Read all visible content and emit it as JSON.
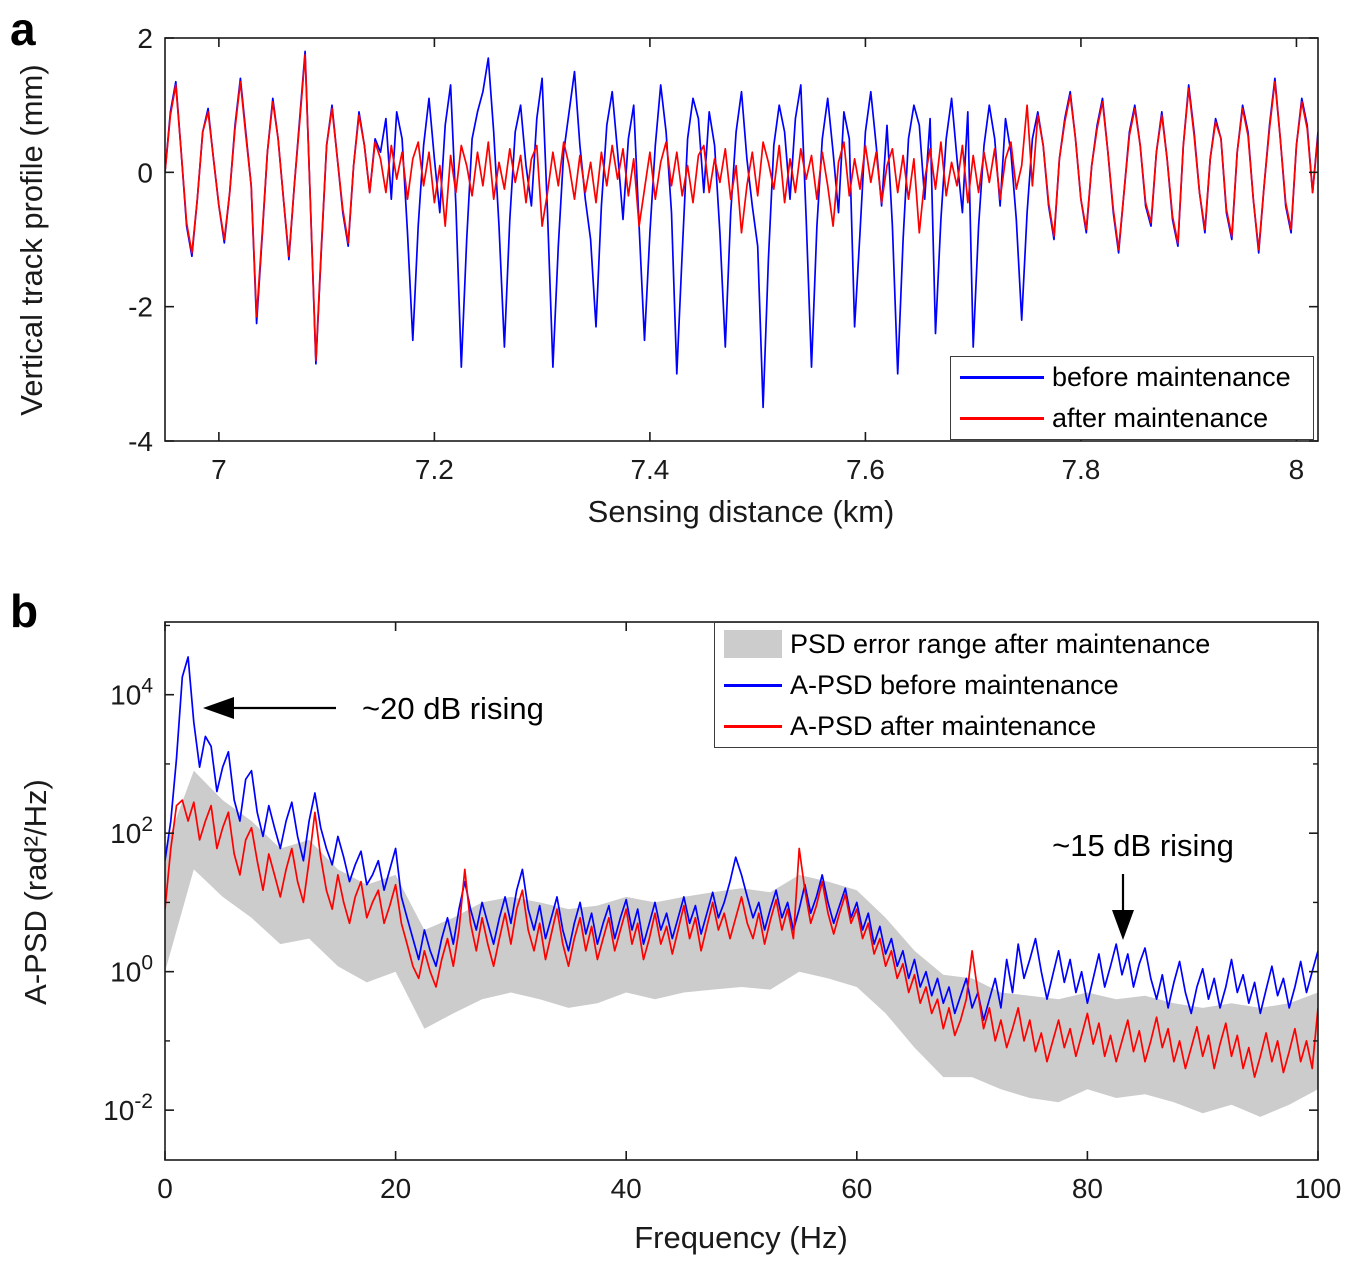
{
  "figure": {
    "background": "#ffffff"
  },
  "panel_a": {
    "label": "a"
  },
  "panel_b": {
    "label": "b"
  },
  "colors": {
    "before": "#0000ff",
    "after": "#ff0000",
    "band": "#cccccc",
    "axis": "#1a1a1a"
  },
  "chart_data": [
    {
      "type": "line",
      "panel": "a",
      "xlabel": "Sensing distance (km)",
      "ylabel": "Vertical track profile (mm)",
      "xlim": [
        6.95,
        8.02
      ],
      "ylim": [
        -4,
        2
      ],
      "grid": false,
      "x_ticks": {
        "values": [
          7,
          7.2,
          7.4,
          7.6,
          7.8,
          8
        ],
        "labels": [
          "7",
          "7.2",
          "7.4",
          "7.6",
          "7.8",
          "8"
        ]
      },
      "y_ticks": {
        "values": [
          2,
          0,
          -2,
          -4
        ],
        "labels": [
          "2",
          "0",
          "-2",
          "-4"
        ]
      },
      "legend_position": "bottom-right",
      "legend": [
        {
          "label": "before maintenance",
          "color": "#0000ff"
        },
        {
          "label": "after maintenance",
          "color": "#ff0000"
        }
      ],
      "series": [
        {
          "name": "before maintenance",
          "color": "#0000ff",
          "x_start": 6.95,
          "x_step": 0.005,
          "values": [
            0.0,
            0.9,
            1.35,
            0.3,
            -0.8,
            -1.25,
            -0.4,
            0.6,
            0.95,
            0.2,
            -0.5,
            -1.05,
            -0.3,
            0.7,
            1.4,
            0.6,
            -0.2,
            -2.25,
            -1.0,
            0.3,
            1.1,
            0.5,
            -0.4,
            -1.3,
            -0.2,
            0.8,
            1.8,
            -0.5,
            -2.85,
            -1.2,
            0.4,
            1.0,
            0.2,
            -0.6,
            -1.1,
            0.1,
            0.9,
            0.4,
            -0.3,
            0.5,
            0.3,
            0.8,
            -0.4,
            0.9,
            0.5,
            -0.9,
            -2.5,
            -0.8,
            0.4,
            1.1,
            0.2,
            -0.6,
            0.7,
            1.3,
            -0.5,
            -2.9,
            -1.0,
            0.5,
            0.9,
            1.2,
            1.7,
            0.6,
            -0.8,
            -2.6,
            -0.7,
            0.6,
            1.0,
            0.1,
            -0.5,
            0.8,
            1.4,
            -0.6,
            -2.9,
            -1.1,
            0.3,
            0.9,
            1.5,
            0.4,
            -0.4,
            -1.0,
            -2.3,
            -0.5,
            0.7,
            1.2,
            0.3,
            -0.7,
            0.5,
            1.0,
            -0.8,
            -2.5,
            -0.9,
            0.4,
            1.3,
            0.6,
            -0.6,
            -3.0,
            -1.2,
            0.5,
            1.1,
            0.8,
            -0.3,
            0.9,
            0.4,
            -0.9,
            -2.6,
            -0.6,
            0.6,
            1.2,
            0.2,
            -0.5,
            -1.1,
            -3.5,
            -1.3,
            0.4,
            1.0,
            0.6,
            -0.4,
            0.8,
            1.3,
            -0.7,
            -2.9,
            -0.8,
            0.5,
            1.1,
            0.3,
            -0.6,
            0.9,
            0.5,
            -2.3,
            -0.9,
            0.6,
            1.2,
            0.4,
            -0.5,
            0.7,
            -0.8,
            -3.0,
            -1.0,
            0.5,
            1.0,
            0.7,
            -0.4,
            0.8,
            -2.4,
            -0.7,
            0.5,
            1.1,
            0.2,
            -0.6,
            0.9,
            -2.6,
            -0.8,
            0.4,
            1.0,
            0.5,
            -0.5,
            0.8,
            0.3,
            -0.7,
            -2.2,
            -0.6,
            0.5,
            0.9,
            0.4,
            -0.5,
            -1.0,
            0.2,
            0.8,
            1.2,
            0.5,
            -0.4,
            -0.9,
            0.1,
            0.7,
            1.1,
            0.3,
            -0.6,
            -1.2,
            -0.3,
            0.6,
            1.0,
            0.4,
            -0.5,
            -0.8,
            0.3,
            0.9,
            0.2,
            -0.7,
            -1.1,
            0.4,
            1.3,
            0.6,
            -0.3,
            -0.9,
            0.2,
            0.8,
            0.5,
            -0.6,
            -1.0,
            0.3,
            1.0,
            0.6,
            -0.4,
            -1.2,
            -0.2,
            0.7,
            1.4,
            0.5,
            -0.5,
            -0.9,
            0.4,
            1.1,
            0.7,
            -0.3,
            0.6
          ]
        },
        {
          "name": "after maintenance",
          "color": "#ff0000",
          "x_start": 6.95,
          "x_step": 0.005,
          "values": [
            0.0,
            0.85,
            1.3,
            0.3,
            -0.75,
            -1.2,
            -0.4,
            0.6,
            0.9,
            0.2,
            -0.5,
            -1.0,
            -0.3,
            0.65,
            1.35,
            0.55,
            -0.2,
            -2.15,
            -0.95,
            0.3,
            1.05,
            0.5,
            -0.4,
            -1.25,
            -0.2,
            0.75,
            1.75,
            -0.5,
            -2.8,
            -1.15,
            0.4,
            0.95,
            0.2,
            -0.55,
            -1.05,
            0.1,
            0.85,
            0.4,
            -0.3,
            0.45,
            0.2,
            -0.3,
            0.4,
            -0.1,
            0.3,
            -0.4,
            0.2,
            0.45,
            -0.2,
            0.3,
            -0.45,
            0.1,
            -0.8,
            0.25,
            -0.3,
            0.4,
            0.1,
            -0.35,
            0.3,
            -0.2,
            0.45,
            -0.4,
            0.15,
            -0.25,
            0.35,
            -0.15,
            0.25,
            -0.45,
            0.2,
            0.4,
            -0.8,
            -0.3,
            0.3,
            -0.2,
            0.45,
            0.1,
            -0.4,
            0.25,
            -0.3,
            0.15,
            -0.45,
            0.3,
            -0.2,
            0.4,
            -0.1,
            0.35,
            -0.35,
            0.2,
            -0.8,
            -0.25,
            0.3,
            -0.4,
            0.15,
            0.45,
            -0.2,
            0.3,
            -0.35,
            0.1,
            -0.45,
            0.25,
            0.4,
            -0.3,
            0.2,
            -0.15,
            0.35,
            -0.4,
            0.1,
            -0.9,
            -0.2,
            0.3,
            -0.35,
            0.45,
            0.15,
            -0.25,
            0.4,
            -0.45,
            0.2,
            -0.3,
            0.35,
            -0.1,
            0.25,
            -0.4,
            0.3,
            -0.2,
            -0.8,
            0.15,
            0.45,
            -0.35,
            0.2,
            -0.25,
            0.4,
            -0.15,
            0.3,
            -0.45,
            0.1,
            0.35,
            -0.3,
            0.25,
            -0.4,
            0.2,
            -0.9,
            -0.1,
            0.35,
            -0.25,
            0.45,
            -0.35,
            0.15,
            -0.2,
            0.4,
            -0.45,
            0.25,
            -0.3,
            0.3,
            -0.15,
            0.35,
            -0.4,
            0.2,
            0.45,
            -0.25,
            0.1,
            1.0,
            -0.2,
            0.85,
            0.4,
            -0.45,
            -0.95,
            0.2,
            0.75,
            1.15,
            0.5,
            -0.4,
            -0.85,
            0.1,
            0.65,
            1.05,
            0.3,
            -0.55,
            -1.15,
            -0.3,
            0.55,
            0.95,
            0.4,
            -0.45,
            -0.75,
            0.3,
            0.85,
            0.2,
            -0.65,
            -1.05,
            0.4,
            1.25,
            0.55,
            -0.3,
            -0.85,
            0.2,
            0.75,
            0.5,
            -0.55,
            -0.95,
            0.3,
            0.95,
            0.55,
            -0.4,
            -1.15,
            -0.2,
            0.65,
            1.35,
            0.5,
            -0.45,
            -0.85,
            0.4,
            1.05,
            0.65,
            -0.3,
            0.55
          ]
        }
      ]
    },
    {
      "type": "line",
      "panel": "b",
      "xlabel": "Frequency (Hz)",
      "ylabel": "A-PSD (rad²/Hz)",
      "xlim": [
        0,
        100
      ],
      "yscale": "log",
      "ylim_log10": [
        -2.72,
        5.05
      ],
      "grid": false,
      "x_ticks": {
        "values": [
          0,
          20,
          40,
          60,
          80,
          100
        ],
        "labels": [
          "0",
          "20",
          "40",
          "60",
          "80",
          "100"
        ]
      },
      "y_ticks": {
        "values": [
          0.01,
          1,
          100,
          10000
        ],
        "labels": [
          "10^-2",
          "10^0",
          "10^2",
          "10^4"
        ]
      },
      "y_minor_ticks": [
        0.1,
        10,
        1000,
        100000
      ],
      "legend_position": "top-right",
      "legend": [
        {
          "label": "PSD error range after maintenance",
          "color": "#cccccc",
          "type": "patch"
        },
        {
          "label": "A-PSD before maintenance",
          "color": "#0000ff",
          "type": "line"
        },
        {
          "label": "A-PSD after maintenance",
          "color": "#ff0000",
          "type": "line"
        }
      ],
      "annotations": [
        {
          "text": "~20 dB rising",
          "arrow": "left",
          "points_to": {
            "x_hz": 2.5,
            "y": 10000
          }
        },
        {
          "text": "~15 dB rising",
          "arrow": "down",
          "points_to": {
            "x_hz": 83,
            "y": 3
          }
        }
      ],
      "band": {
        "name": "PSD error range after maintenance",
        "color": "#cccccc",
        "x": [
          0,
          2.5,
          5,
          7.5,
          10,
          12.5,
          15,
          17.5,
          20,
          22.5,
          25,
          27.5,
          30,
          32.5,
          35,
          37.5,
          40,
          42.5,
          45,
          47.5,
          50,
          52.5,
          55,
          57.5,
          60,
          62.5,
          65,
          67.5,
          70,
          72.5,
          75,
          77.5,
          80,
          82.5,
          85,
          87.5,
          90,
          92.5,
          95,
          97.5,
          100
        ],
        "upper": [
          60,
          800,
          300,
          150,
          60,
          80,
          30,
          18,
          25,
          4,
          6,
          10,
          12,
          10,
          8,
          9,
          12,
          10,
          12,
          14,
          16,
          14,
          25,
          20,
          15,
          6,
          2,
          0.9,
          0.8,
          0.5,
          0.45,
          0.4,
          0.5,
          0.4,
          0.45,
          0.35,
          0.3,
          0.35,
          0.3,
          0.35,
          0.5
        ],
        "lower": [
          1,
          30,
          12,
          6,
          2.5,
          3,
          1.2,
          0.7,
          1,
          0.15,
          0.25,
          0.4,
          0.5,
          0.4,
          0.3,
          0.35,
          0.5,
          0.4,
          0.5,
          0.55,
          0.6,
          0.55,
          1,
          0.8,
          0.6,
          0.25,
          0.08,
          0.03,
          0.03,
          0.02,
          0.015,
          0.013,
          0.02,
          0.015,
          0.017,
          0.013,
          0.009,
          0.012,
          0.008,
          0.012,
          0.02
        ]
      },
      "series": [
        {
          "name": "A-PSD before maintenance",
          "color": "#0000ff",
          "x_start": 0,
          "x_step": 0.5,
          "values": [
            40,
            150,
            1200,
            18000,
            35000,
            4000,
            900,
            2500,
            1800,
            400,
            900,
            1500,
            300,
            150,
            600,
            800,
            200,
            90,
            250,
            120,
            60,
            150,
            280,
            90,
            40,
            150,
            380,
            120,
            60,
            35,
            90,
            45,
            20,
            35,
            55,
            18,
            25,
            40,
            15,
            30,
            60,
            12,
            6,
            3,
            1.5,
            4,
            2,
            1.2,
            3,
            6,
            2.5,
            8,
            20,
            8,
            4,
            10,
            5,
            2.5,
            6,
            12,
            5,
            15,
            30,
            8,
            4,
            9,
            3,
            6,
            12,
            4,
            2,
            5,
            10,
            3.5,
            7,
            2.5,
            5,
            9,
            3,
            6,
            11,
            4,
            8,
            2.5,
            5,
            10,
            4,
            7,
            3,
            6,
            12,
            5,
            9,
            3.5,
            7,
            14,
            6,
            10,
            20,
            45,
            25,
            12,
            6,
            10,
            4,
            8,
            15,
            6,
            10,
            4,
            8,
            18,
            7,
            12,
            25,
            10,
            5,
            9,
            16,
            6,
            10,
            4,
            7,
            2.5,
            4.5,
            1.8,
            3,
            1.2,
            2,
            0.8,
            1.5,
            0.6,
            1,
            0.45,
            0.8,
            0.35,
            0.6,
            0.25,
            0.45,
            0.8,
            0.3,
            0.5,
            0.2,
            0.4,
            0.8,
            0.3,
            1.5,
            0.5,
            2.5,
            0.8,
            1.5,
            3,
            1,
            0.4,
            0.9,
            2,
            0.7,
            1.5,
            0.5,
            1,
            0.35,
            0.8,
            1.8,
            0.6,
            1.2,
            2.5,
            0.9,
            1.8,
            0.6,
            1.3,
            2.2,
            0.8,
            0.4,
            0.9,
            0.3,
            0.7,
            1.4,
            0.5,
            0.25,
            0.6,
            1.1,
            0.4,
            0.8,
            0.3,
            0.6,
            1.5,
            0.5,
            0.9,
            0.35,
            0.7,
            0.25,
            0.55,
            1.2,
            0.45,
            0.8,
            0.3,
            0.6,
            1.4,
            0.5,
            1,
            2
          ]
        },
        {
          "name": "A-PSD after maintenance",
          "color": "#ff0000",
          "x_start": 0,
          "x_step": 0.5,
          "values": [
            8,
            60,
            250,
            300,
            150,
            280,
            80,
            150,
            250,
            60,
            120,
            200,
            50,
            25,
            80,
            120,
            40,
            15,
            50,
            25,
            12,
            30,
            60,
            20,
            10,
            40,
            200,
            45,
            15,
            8,
            25,
            10,
            5,
            12,
            20,
            6,
            10,
            15,
            5,
            9,
            18,
            5,
            2.5,
            1.2,
            0.8,
            2,
            1,
            0.6,
            1.5,
            3,
            1.2,
            4,
            30,
            5,
            2,
            6,
            2.5,
            1.2,
            3,
            7,
            2.5,
            8,
            15,
            4,
            2,
            5,
            1.5,
            3.5,
            8,
            2.5,
            1.2,
            3,
            6,
            2,
            4.5,
            1.5,
            3,
            6,
            2,
            4,
            8,
            2.5,
            5,
            1.5,
            3,
            7,
            2.5,
            4.5,
            1.8,
            4,
            9,
            3,
            6,
            2,
            4.5,
            10,
            4,
            7,
            3,
            6,
            12,
            5,
            3,
            7,
            2.5,
            5.5,
            11,
            4,
            8,
            3,
            60,
            15,
            5,
            9,
            20,
            7,
            3.5,
            7,
            13,
            5,
            8,
            3,
            5,
            1.8,
            3,
            1.2,
            2,
            0.8,
            1.3,
            0.5,
            0.9,
            0.35,
            0.6,
            0.25,
            0.4,
            0.15,
            0.3,
            0.12,
            0.2,
            0.4,
            2,
            0.5,
            0.15,
            0.3,
            0.1,
            0.2,
            0.08,
            0.15,
            0.3,
            0.1,
            0.2,
            0.07,
            0.13,
            0.05,
            0.1,
            0.2,
            0.08,
            0.15,
            0.06,
            0.12,
            0.25,
            0.09,
            0.18,
            0.06,
            0.12,
            0.05,
            0.1,
            0.2,
            0.07,
            0.14,
            0.05,
            0.1,
            0.22,
            0.08,
            0.15,
            0.05,
            0.1,
            0.04,
            0.08,
            0.16,
            0.06,
            0.12,
            0.04,
            0.09,
            0.18,
            0.06,
            0.12,
            0.04,
            0.08,
            0.03,
            0.06,
            0.13,
            0.05,
            0.1,
            0.035,
            0.07,
            0.15,
            0.05,
            0.1,
            0.04,
            0.3
          ]
        }
      ]
    }
  ]
}
